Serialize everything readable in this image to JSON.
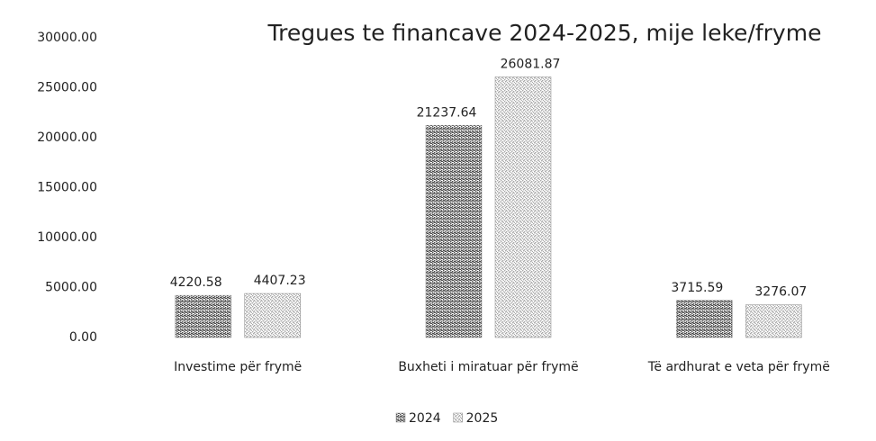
{
  "chart_data": {
    "type": "bar",
    "title": "Tregues te financave 2024-2025, mije leke/fryme",
    "categories": [
      "Investime për frymë",
      "Buxheti i miratuar për frymë",
      "Të ardhurat e veta për frymë"
    ],
    "series": [
      {
        "name": "2024",
        "color": "#4a4a4a",
        "values": [
          4220.58,
          21237.64,
          3715.59
        ]
      },
      {
        "name": "2025",
        "color": "#a8a8a8",
        "values": [
          4407.23,
          26081.87,
          3276.07
        ]
      }
    ],
    "ylim": [
      0,
      30000
    ],
    "yticks": [
      {
        "value": 0,
        "label": "0.00"
      },
      {
        "value": 5000,
        "label": "5000.00"
      },
      {
        "value": 10000,
        "label": "10000.00"
      },
      {
        "value": 15000,
        "label": "15000.00"
      },
      {
        "value": 20000,
        "label": "20000.00"
      },
      {
        "value": 25000,
        "label": "25000.00"
      },
      {
        "value": 30000,
        "label": "30000.00"
      }
    ],
    "grid": false,
    "legend": "bottom"
  }
}
